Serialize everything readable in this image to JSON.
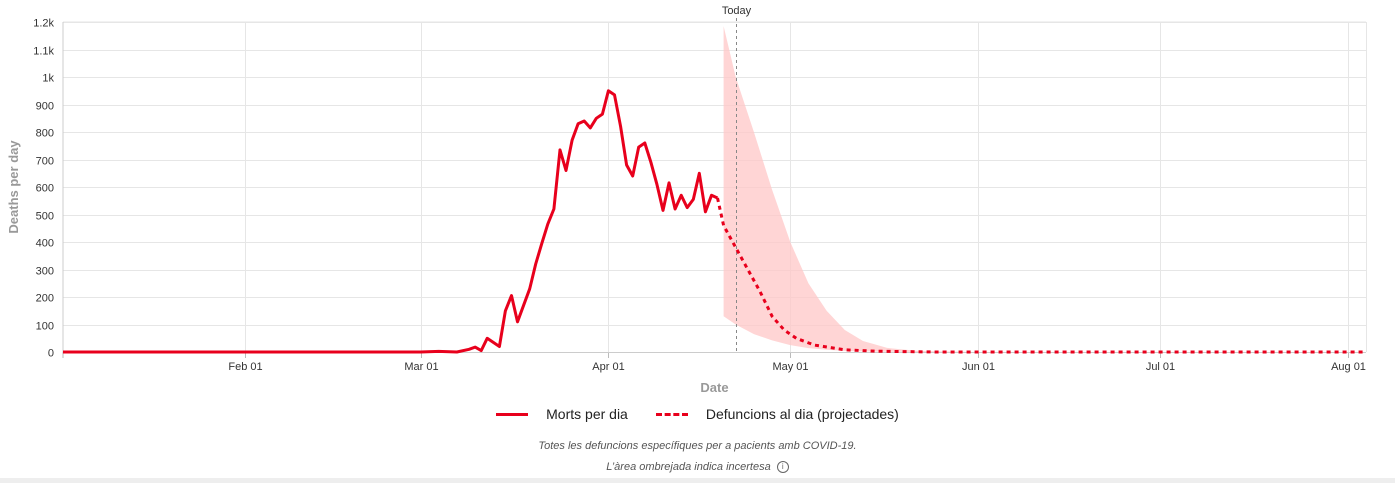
{
  "chart_data": {
    "type": "line",
    "xlabel": "Date",
    "ylabel": "Deaths per day",
    "x_ticks": [
      "Feb 01",
      "Mar 01",
      "Apr 01",
      "May 01",
      "Jun 01",
      "Jul 01",
      "Aug 01"
    ],
    "x_tick_dates": [
      "2020-02-01",
      "2020-03-01",
      "2020-04-01",
      "2020-05-01",
      "2020-06-01",
      "2020-07-01",
      "2020-08-01"
    ],
    "x_range": [
      "2020-01-02",
      "2020-08-04"
    ],
    "y_ticks": [
      "0",
      "100",
      "200",
      "300",
      "400",
      "500",
      "600",
      "700",
      "800",
      "900",
      "1k",
      "1.1k",
      "1.2k"
    ],
    "y_tick_values": [
      0,
      100,
      200,
      300,
      400,
      500,
      600,
      700,
      800,
      900,
      1000,
      1100,
      1200
    ],
    "ylim": [
      0,
      1200
    ],
    "grid": true,
    "today_label": "Today",
    "today_date": "2020-04-22",
    "legend_position": "bottom",
    "series": [
      {
        "name": "Morts per dia",
        "style": "solid",
        "color": "#e8001c",
        "points": [
          [
            "2020-01-02",
            0
          ],
          [
            "2020-03-01",
            0
          ],
          [
            "2020-03-04",
            2
          ],
          [
            "2020-03-07",
            0
          ],
          [
            "2020-03-09",
            10
          ],
          [
            "2020-03-10",
            18
          ],
          [
            "2020-03-11",
            5
          ],
          [
            "2020-03-12",
            50
          ],
          [
            "2020-03-13",
            35
          ],
          [
            "2020-03-14",
            20
          ],
          [
            "2020-03-15",
            150
          ],
          [
            "2020-03-16",
            205
          ],
          [
            "2020-03-17",
            110
          ],
          [
            "2020-03-18",
            170
          ],
          [
            "2020-03-19",
            230
          ],
          [
            "2020-03-20",
            320
          ],
          [
            "2020-03-21",
            395
          ],
          [
            "2020-03-22",
            465
          ],
          [
            "2020-03-23",
            520
          ],
          [
            "2020-03-24",
            735
          ],
          [
            "2020-03-25",
            660
          ],
          [
            "2020-03-26",
            770
          ],
          [
            "2020-03-27",
            830
          ],
          [
            "2020-03-28",
            840
          ],
          [
            "2020-03-29",
            815
          ],
          [
            "2020-03-30",
            850
          ],
          [
            "2020-03-31",
            865
          ],
          [
            "2020-04-01",
            950
          ],
          [
            "2020-04-02",
            935
          ],
          [
            "2020-04-03",
            820
          ],
          [
            "2020-04-04",
            680
          ],
          [
            "2020-04-05",
            640
          ],
          [
            "2020-04-06",
            745
          ],
          [
            "2020-04-07",
            760
          ],
          [
            "2020-04-08",
            690
          ],
          [
            "2020-04-09",
            610
          ],
          [
            "2020-04-10",
            515
          ],
          [
            "2020-04-11",
            615
          ],
          [
            "2020-04-12",
            520
          ],
          [
            "2020-04-13",
            570
          ],
          [
            "2020-04-14",
            525
          ],
          [
            "2020-04-15",
            555
          ],
          [
            "2020-04-16",
            650
          ],
          [
            "2020-04-17",
            510
          ],
          [
            "2020-04-18",
            570
          ],
          [
            "2020-04-19",
            560
          ]
        ]
      },
      {
        "name": "Defuncions al dia (projectades)",
        "style": "dashed",
        "color": "#e8001c",
        "points": [
          [
            "2020-04-19",
            560
          ],
          [
            "2020-04-20",
            460
          ],
          [
            "2020-04-22",
            380
          ],
          [
            "2020-04-24",
            300
          ],
          [
            "2020-04-26",
            220
          ],
          [
            "2020-04-28",
            130
          ],
          [
            "2020-04-30",
            80
          ],
          [
            "2020-05-02",
            50
          ],
          [
            "2020-05-05",
            25
          ],
          [
            "2020-05-10",
            8
          ],
          [
            "2020-05-15",
            3
          ],
          [
            "2020-05-25",
            0
          ],
          [
            "2020-08-04",
            0
          ]
        ]
      }
    ],
    "uncertainty_band": {
      "color": "#ffc7c7",
      "points": [
        [
          "2020-04-20",
          130,
          1185
        ],
        [
          "2020-04-22",
          100,
          1000
        ],
        [
          "2020-04-25",
          65,
          800
        ],
        [
          "2020-04-28",
          42,
          590
        ],
        [
          "2020-05-01",
          25,
          400
        ],
        [
          "2020-05-04",
          14,
          250
        ],
        [
          "2020-05-07",
          8,
          150
        ],
        [
          "2020-05-10",
          4,
          80
        ],
        [
          "2020-05-13",
          2,
          40
        ],
        [
          "2020-05-17",
          1,
          15
        ],
        [
          "2020-05-22",
          0,
          4
        ],
        [
          "2020-05-31",
          0,
          0
        ]
      ]
    }
  },
  "legend": {
    "actual_label": "Morts per dia",
    "projected_label": "Defuncions al dia (projectades)"
  },
  "notes": {
    "line1": "Totes les defuncions específiques per a pacients amb COVID-19.",
    "line2": "L’àrea ombrejada indica incertesa",
    "info_icon": "info-icon"
  }
}
